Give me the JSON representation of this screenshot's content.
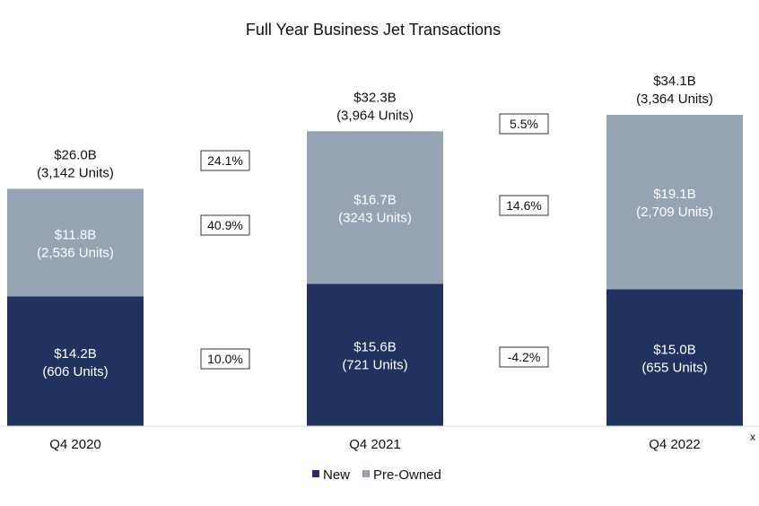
{
  "chart_data": {
    "type": "bar",
    "stacked": true,
    "title": "Full Year Business Jet Transactions",
    "categories": [
      "Q4 2020",
      "Q4 2021",
      "Q4 2022"
    ],
    "series": [
      {
        "name": "New",
        "color": "#22325e",
        "values": [
          14.2,
          15.6,
          15.0
        ],
        "labels": [
          [
            "$14.2B",
            "(606 Units)"
          ],
          [
            "$15.6B",
            "(721 Units)"
          ],
          [
            "$15.0B",
            "(655 Units)"
          ]
        ]
      },
      {
        "name": "Pre-Owned",
        "color": "#96a3b2",
        "values": [
          11.8,
          16.7,
          19.1
        ],
        "labels": [
          [
            "$11.8B",
            "(2,536 Units)"
          ],
          [
            "$16.7B",
            "(3243 Units)"
          ],
          [
            "$19.1B",
            "(2,709 Units)"
          ]
        ]
      }
    ],
    "totals": [
      [
        "$26.0B",
        "(3,142 Units)"
      ],
      [
        "$32.3B",
        "(3,964 Units)"
      ],
      [
        "$34.1B",
        "(3,364 Units)"
      ]
    ],
    "growth": [
      {
        "total": "24.1%",
        "preowned": "40.9%",
        "new": "10.0%"
      },
      {
        "total": "5.5%",
        "preowned": "14.6%",
        "new": "-4.2%"
      }
    ],
    "ylim": [
      0,
      34.1
    ],
    "grid": false,
    "legend_position": "bottom",
    "axis_marker": "x"
  }
}
